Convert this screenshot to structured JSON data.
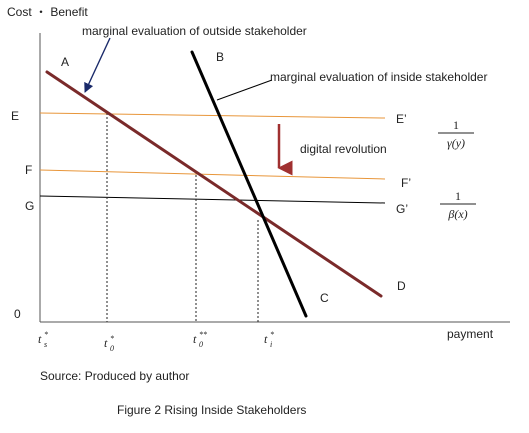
{
  "axes": {
    "y_title": "Cost ・ Benefit",
    "x_title": "payment",
    "origin": "0"
  },
  "curves": {
    "A_label": "A",
    "A_name": "marginal evaluation of outside stakeholder",
    "B_label": "B",
    "B_name": "marginal evaluation of inside stakeholder",
    "C_label": "C",
    "D_label": "D"
  },
  "levels": {
    "E": "E",
    "E_prime": "E’",
    "F": "F",
    "F_prime": "F’",
    "G": "G",
    "G_prime": "G’",
    "arrow_label": "digital revolution",
    "ef_fraction": {
      "numerator": "1",
      "denominator": "γ(y)"
    },
    "g_fraction": {
      "numerator": "1",
      "denominator": "β(x)"
    }
  },
  "x_ticks": [
    {
      "main": "t",
      "sup": "*",
      "sub": "s"
    },
    {
      "main": "t",
      "sup": "*",
      "sub": "0"
    },
    {
      "main": "t",
      "sup": "**",
      "sub": "0"
    },
    {
      "main": "t",
      "sup": "*",
      "sub": "i"
    }
  ],
  "source": "Source: Produced by author",
  "caption": "Figure 2 Rising Inside Stakeholders",
  "colors": {
    "outside_curve": "#7a2a2a",
    "inside_curve": "#000000",
    "level_lines": "#e8963a",
    "g_line": "#000000",
    "arrow": "#a03030"
  }
}
